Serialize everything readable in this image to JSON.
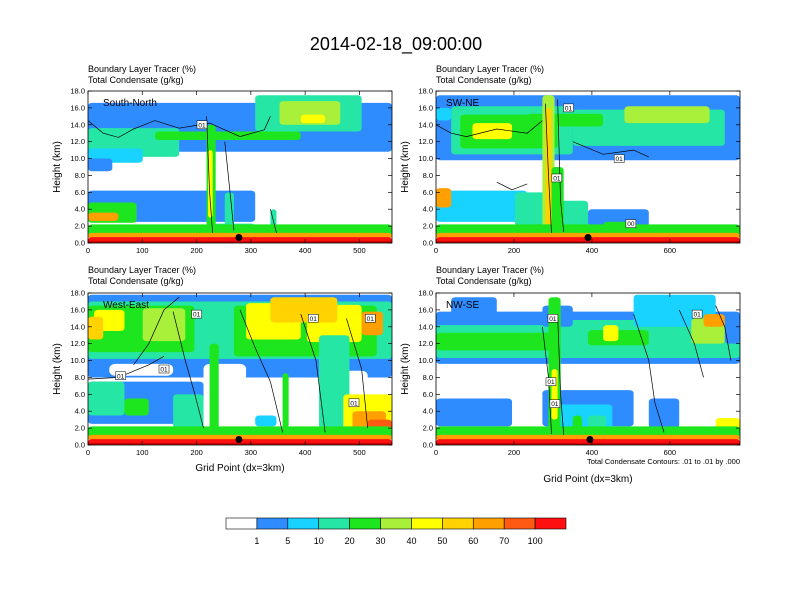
{
  "title": "2014-02-18_09:00:00",
  "panel_titles": {
    "line1": "Boundary Layer Tracer    (%)",
    "line2": "Total Condensate    (g/kg)"
  },
  "ylabel": "Height (km)",
  "xlabel": "Grid Point (dx=3km)",
  "contour_note": "Total Condensate Contours: .01 to .01 by .000",
  "colors": {
    "levels": [
      "#ffffff",
      "#2f8cff",
      "#18d2ff",
      "#26e6a6",
      "#1ee61e",
      "#a8f03a",
      "#ffff00",
      "#ffd200",
      "#ffa000",
      "#ff5a14",
      "#ff1010"
    ],
    "dark_red": "#cc0000"
  },
  "colorbar_labels": [
    "1",
    "5",
    "10",
    "20",
    "30",
    "40",
    "50",
    "60",
    "70",
    "100"
  ],
  "chart_data": [
    {
      "type": "heatmap",
      "name": "South-North",
      "x_ticks": [
        "0",
        "100",
        "200",
        "300",
        "400",
        "500"
      ],
      "xlim": [
        0,
        560
      ],
      "y_ticks": [
        "0.0",
        "2.0",
        "4.0",
        "6.0",
        "8.0",
        "10.0",
        "12.0",
        "14.0",
        "16.0",
        "18.0"
      ],
      "ylim": [
        0,
        18
      ],
      "marker_x": 278,
      "contour_labels": [
        {
          "text": "01",
          "x": 210,
          "y": 14
        }
      ]
    },
    {
      "type": "heatmap",
      "name": "SW-NE",
      "x_ticks": [
        "0",
        "200",
        "400",
        "600"
      ],
      "xlim": [
        0,
        780
      ],
      "y_ticks": [
        "0.0",
        "2.0",
        "4.0",
        "6.0",
        "8.0",
        "10.0",
        "12.0",
        "14.0",
        "16.0",
        "18.0"
      ],
      "ylim": [
        0,
        18
      ],
      "marker_x": 390,
      "contour_labels": [
        {
          "text": "01",
          "x": 340,
          "y": 16
        },
        {
          "text": "01",
          "x": 470,
          "y": 10
        },
        {
          "text": "01",
          "x": 310,
          "y": 7.7
        },
        {
          "text": "00",
          "x": 500,
          "y": 2.3
        }
      ]
    },
    {
      "type": "heatmap",
      "name": "West-East",
      "x_ticks": [
        "0",
        "100",
        "200",
        "300",
        "400",
        "500"
      ],
      "xlim": [
        0,
        560
      ],
      "y_ticks": [
        "0.0",
        "2.0",
        "4.0",
        "6.0",
        "8.0",
        "10.0",
        "12.0",
        "14.0",
        "16.0",
        "18.0"
      ],
      "ylim": [
        0,
        18
      ],
      "marker_x": 278,
      "contour_labels": [
        {
          "text": "01",
          "x": 200,
          "y": 15.5
        },
        {
          "text": "01",
          "x": 60,
          "y": 8.2
        },
        {
          "text": "01",
          "x": 140,
          "y": 9
        },
        {
          "text": "01",
          "x": 415,
          "y": 15
        },
        {
          "text": "01",
          "x": 520,
          "y": 15
        },
        {
          "text": "01",
          "x": 490,
          "y": 5
        }
      ]
    },
    {
      "type": "heatmap",
      "name": "NW-SE",
      "x_ticks": [
        "0",
        "200",
        "400",
        "600"
      ],
      "xlim": [
        0,
        780
      ],
      "y_ticks": [
        "0.0",
        "2.0",
        "4.0",
        "6.0",
        "8.0",
        "10.0",
        "12.0",
        "14.0",
        "16.0",
        "18.0"
      ],
      "ylim": [
        0,
        18
      ],
      "marker_x": 395,
      "contour_labels": [
        {
          "text": "01",
          "x": 300,
          "y": 15
        },
        {
          "text": "01",
          "x": 295,
          "y": 7.5
        },
        {
          "text": "01",
          "x": 305,
          "y": 4.9
        },
        {
          "text": "01",
          "x": 670,
          "y": 15.5
        }
      ]
    }
  ]
}
